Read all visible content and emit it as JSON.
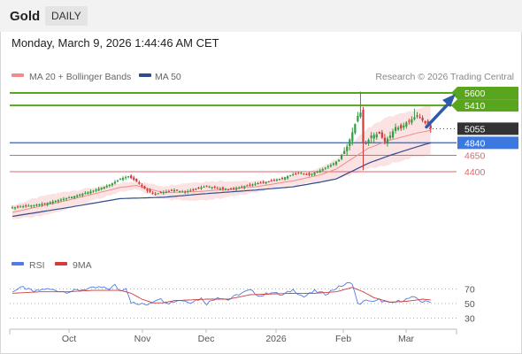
{
  "header": {
    "asset": "Gold",
    "period": "DAILY",
    "datetime": "Monday, March 9, 2026 1:44:46 AM CET"
  },
  "legend": {
    "ma20": "MA 20 + Bollinger Bands",
    "ma50": "MA 50",
    "credit": "Research © 2026 Trading Central",
    "rsi": "RSI",
    "ma9": "9MA"
  },
  "colors": {
    "ma20": "#f28b8b",
    "ma50": "#2e4d8f",
    "up": "#2f9e3e",
    "down": "#d23b3b",
    "band": "#fbd9d9",
    "resistance": "#5aa51e",
    "support_blue": "#3b78e0",
    "support_red": "#e06666",
    "arrow": "#2e5aa8",
    "rsi": "#4f7ce8"
  },
  "chart_data": [
    {
      "type": "line",
      "subtype": "candlestick",
      "title": "Gold",
      "x_tick_labels": [
        "Oct",
        "Nov",
        "Dec",
        "2026",
        "Feb",
        "Mar"
      ],
      "price_range": [
        3800,
        5720
      ],
      "levels": [
        {
          "label": "5600",
          "value": 5600,
          "kind": "resistance"
        },
        {
          "label": "5410",
          "value": 5410,
          "kind": "resistance"
        },
        {
          "label": "5055",
          "value": 5055,
          "kind": "last"
        },
        {
          "label": "4840",
          "value": 4840,
          "kind": "pivot"
        },
        {
          "label": "4650",
          "value": 4650,
          "kind": "support"
        },
        {
          "label": "4400",
          "value": 4400,
          "kind": "support"
        }
      ],
      "waypoints": [
        [
          0,
          3855
        ],
        [
          6,
          3880
        ],
        [
          12,
          3915
        ],
        [
          18,
          3975
        ],
        [
          24,
          4040
        ],
        [
          30,
          4110
        ],
        [
          36,
          4200
        ],
        [
          40,
          4290
        ],
        [
          43,
          4330
        ],
        [
          46,
          4250
        ],
        [
          50,
          4110
        ],
        [
          53,
          4060
        ],
        [
          56,
          4090
        ],
        [
          60,
          4120
        ],
        [
          64,
          4090
        ],
        [
          68,
          4140
        ],
        [
          72,
          4180
        ],
        [
          76,
          4150
        ],
        [
          80,
          4125
        ],
        [
          84,
          4160
        ],
        [
          88,
          4200
        ],
        [
          92,
          4230
        ],
        [
          96,
          4260
        ],
        [
          100,
          4300
        ],
        [
          104,
          4360
        ],
        [
          107,
          4380
        ],
        [
          110,
          4350
        ],
        [
          114,
          4420
        ],
        [
          118,
          4500
        ],
        [
          121,
          4580
        ],
        [
          124,
          4780
        ],
        [
          126,
          5000
        ],
        [
          128,
          5250
        ],
        [
          129,
          5300
        ],
        [
          130,
          4840
        ],
        [
          131,
          4820
        ],
        [
          133,
          4950
        ],
        [
          136,
          4980
        ],
        [
          138,
          4860
        ],
        [
          140,
          4950
        ],
        [
          142,
          5080
        ],
        [
          144,
          5060
        ],
        [
          146,
          5150
        ],
        [
          148,
          5200
        ],
        [
          150,
          5260
        ],
        [
          151,
          5220
        ],
        [
          153,
          5140
        ],
        [
          155,
          5055
        ]
      ],
      "series": [
        {
          "name": "MA 20",
          "waypoints": [
            [
              0,
              3780
            ],
            [
              20,
              3960
            ],
            [
              40,
              4160
            ],
            [
              46,
              4190
            ],
            [
              56,
              4080
            ],
            [
              70,
              4100
            ],
            [
              90,
              4170
            ],
            [
              104,
              4260
            ],
            [
              114,
              4350
            ],
            [
              120,
              4440
            ],
            [
              126,
              4600
            ],
            [
              132,
              4760
            ],
            [
              140,
              4880
            ],
            [
              150,
              4990
            ],
            [
              155,
              5030
            ]
          ]
        },
        {
          "name": "MA 50",
          "waypoints": [
            [
              0,
              3720
            ],
            [
              20,
              3850
            ],
            [
              40,
              3990
            ],
            [
              56,
              4010
            ],
            [
              70,
              4060
            ],
            [
              90,
              4120
            ],
            [
              104,
              4170
            ],
            [
              114,
              4240
            ],
            [
              120,
              4290
            ],
            [
              126,
              4410
            ],
            [
              132,
              4530
            ],
            [
              140,
              4650
            ],
            [
              150,
              4780
            ],
            [
              155,
              4840
            ]
          ]
        }
      ]
    },
    {
      "type": "line",
      "title": "RSI",
      "ylim": [
        20,
        80
      ],
      "y_ticks": [
        70,
        50,
        30
      ],
      "series": [
        {
          "name": "RSI",
          "waypoints": [
            [
              0,
              67
            ],
            [
              4,
              72
            ],
            [
              8,
              66
            ],
            [
              12,
              70
            ],
            [
              16,
              68
            ],
            [
              20,
              66
            ],
            [
              26,
              69
            ],
            [
              32,
              72
            ],
            [
              36,
              70
            ],
            [
              38,
              75
            ],
            [
              40,
              67
            ],
            [
              42,
              72
            ],
            [
              44,
              52
            ],
            [
              46,
              49
            ],
            [
              50,
              49
            ],
            [
              54,
              57
            ],
            [
              58,
              51
            ],
            [
              62,
              55
            ],
            [
              66,
              52
            ],
            [
              70,
              57
            ],
            [
              72,
              50
            ],
            [
              76,
              59
            ],
            [
              80,
              55
            ],
            [
              84,
              63
            ],
            [
              88,
              68
            ],
            [
              92,
              60
            ],
            [
              96,
              66
            ],
            [
              100,
              61
            ],
            [
              104,
              69
            ],
            [
              108,
              59
            ],
            [
              112,
              67
            ],
            [
              116,
              63
            ],
            [
              120,
              71
            ],
            [
              124,
              77
            ],
            [
              126,
              78
            ],
            [
              128,
              49
            ],
            [
              130,
              52
            ],
            [
              132,
              55
            ],
            [
              134,
              52
            ],
            [
              136,
              55
            ],
            [
              140,
              50
            ],
            [
              144,
              54
            ],
            [
              148,
              58
            ],
            [
              150,
              57
            ],
            [
              152,
              52
            ],
            [
              155,
              53
            ]
          ]
        },
        {
          "name": "9MA",
          "waypoints": [
            [
              0,
              64
            ],
            [
              10,
              66
            ],
            [
              20,
              66
            ],
            [
              30,
              68
            ],
            [
              40,
              68
            ],
            [
              44,
              64
            ],
            [
              48,
              56
            ],
            [
              52,
              51
            ],
            [
              56,
              51
            ],
            [
              60,
              54
            ],
            [
              66,
              55
            ],
            [
              72,
              56
            ],
            [
              80,
              56
            ],
            [
              88,
              62
            ],
            [
              96,
              63
            ],
            [
              104,
              64
            ],
            [
              112,
              64
            ],
            [
              120,
              66
            ],
            [
              126,
              72
            ],
            [
              130,
              66
            ],
            [
              134,
              58
            ],
            [
              140,
              52
            ],
            [
              146,
              53
            ],
            [
              152,
              56
            ],
            [
              155,
              55
            ]
          ]
        }
      ]
    }
  ]
}
